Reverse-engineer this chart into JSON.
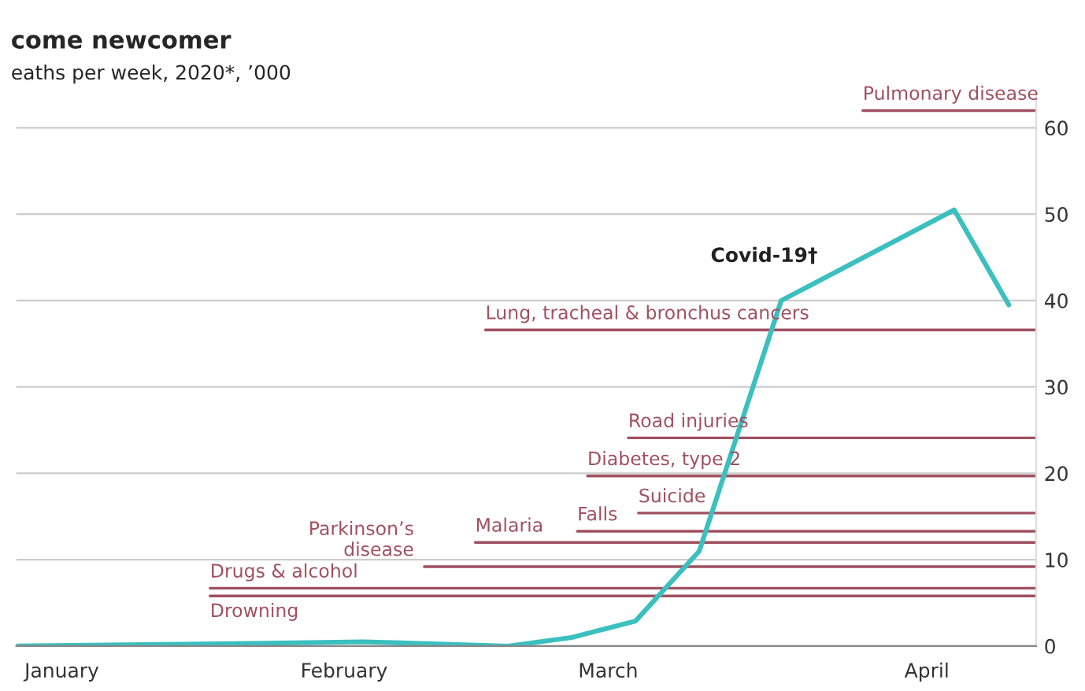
{
  "chart_data": {
    "type": "line",
    "title": "come newcomer",
    "subtitle": "eaths per week, 2020*, ’000",
    "x": [
      "2020-01-10",
      "2020-02-05",
      "2020-02-17",
      "2020-03-04",
      "2020-03-11",
      "2020-03-18",
      "2020-03-25",
      "2020-04-03",
      "2020-04-22",
      "2020-04-28"
    ],
    "series": [
      {
        "name": "Covid-19†",
        "color": "#3bbfbf",
        "values": [
          0,
          0.3,
          0.5,
          0,
          1,
          2.9,
          11,
          40,
          50.5,
          39.5
        ]
      }
    ],
    "xlim": [
      "2020-01-10",
      "2020-05-01"
    ],
    "xticks": [
      {
        "value": "2020-01-15",
        "label": "January"
      },
      {
        "value": "2020-02-15",
        "label": "February"
      },
      {
        "value": "2020-03-15",
        "label": "March"
      },
      {
        "value": "2020-04-19",
        "label": "April"
      }
    ],
    "ylim": [
      0,
      64
    ],
    "yticks": [
      0,
      10,
      20,
      30,
      40,
      50,
      60
    ],
    "grid": "y",
    "marker": "none",
    "line_style": "solid",
    "ref_lines": [
      {
        "axis": "y",
        "value": 62,
        "label": "Pulmonary disease",
        "color": "#a0505f"
      },
      {
        "axis": "y",
        "value": 36.6,
        "label": "Lung, tracheal & bronchus cancers",
        "color": "#a0505f"
      },
      {
        "axis": "y",
        "value": 24.1,
        "label": "Road injuries",
        "color": "#a0505f"
      },
      {
        "axis": "y",
        "value": 19.7,
        "label": "Diabetes, type 2",
        "color": "#a0505f"
      },
      {
        "axis": "y",
        "value": 15.4,
        "label": "Suicide",
        "color": "#a0505f"
      },
      {
        "axis": "y",
        "value": 13.3,
        "label": "Falls",
        "color": "#a0505f"
      },
      {
        "axis": "y",
        "value": 12.0,
        "label": "Malaria",
        "color": "#a0505f"
      },
      {
        "axis": "y",
        "value": 9.2,
        "label": "Parkinson’s\ndisease",
        "color": "#a0505f"
      },
      {
        "axis": "y",
        "value": 6.7,
        "label": "Drugs & alcohol",
        "color": "#a0505f"
      },
      {
        "axis": "y",
        "value": 5.8,
        "label": "Drowning",
        "color": "#a0505f"
      }
    ]
  }
}
